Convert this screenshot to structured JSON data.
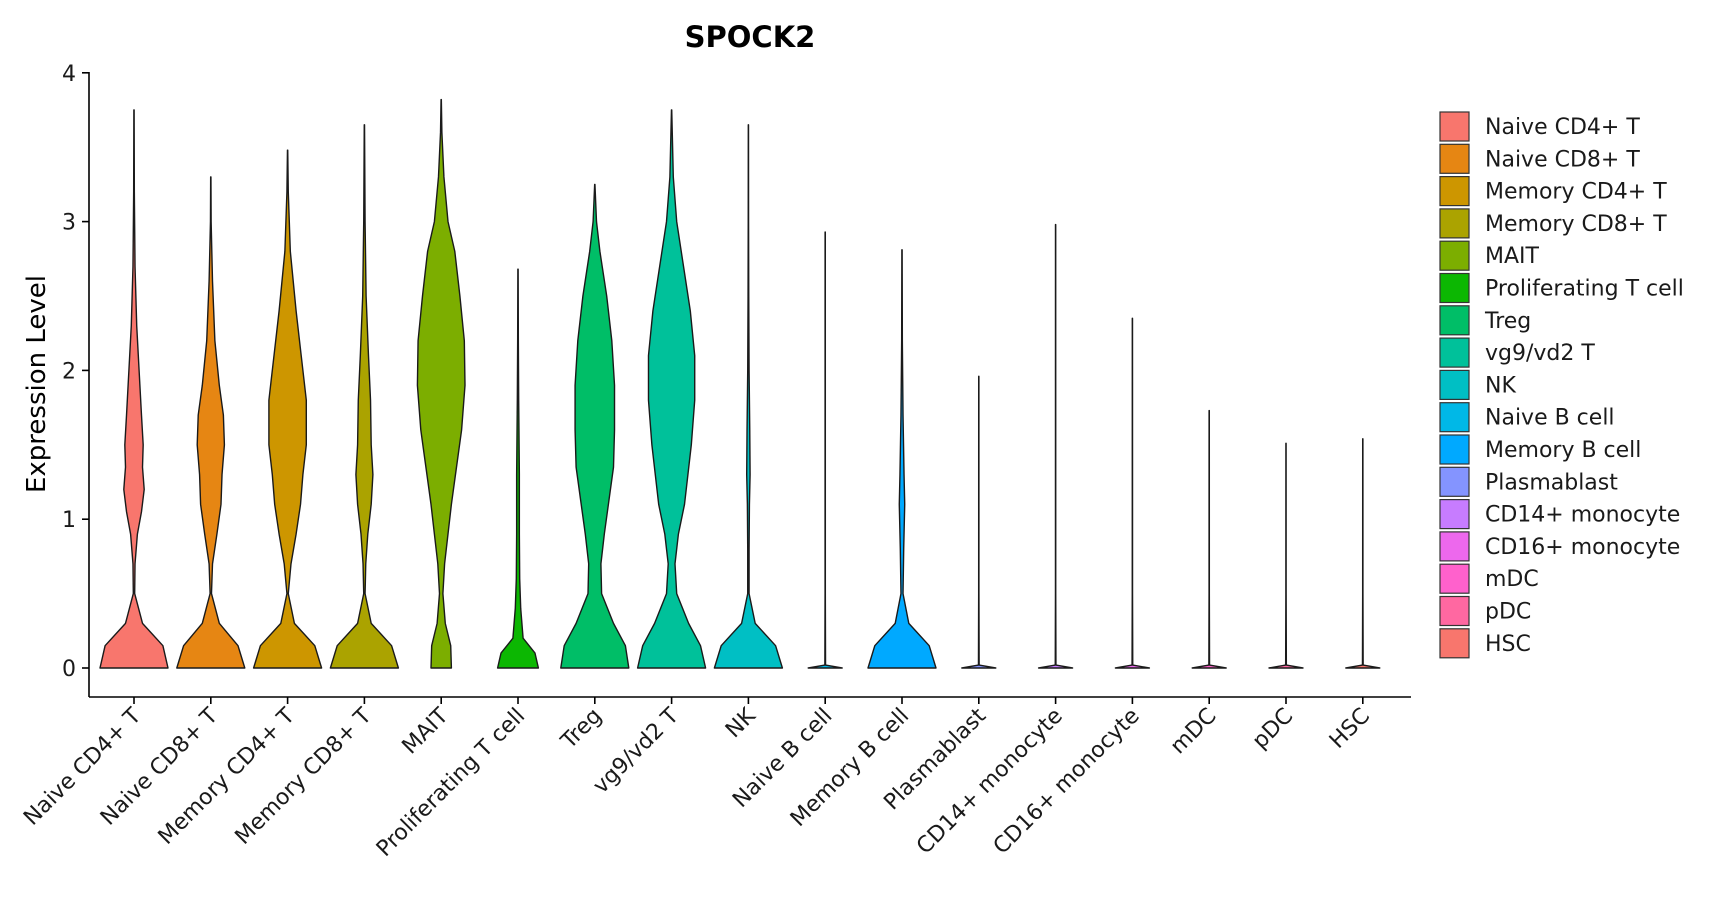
{
  "chart_data": {
    "type": "violin",
    "title": "SPOCK2",
    "xlabel": "",
    "ylabel": "Expression Level",
    "ylim": [
      -0.18,
      4.0
    ],
    "yticks": [
      "0",
      "1",
      "2",
      "3",
      "4"
    ],
    "grid": false,
    "legend_position": "right",
    "categories": [
      "Naive CD4+ T",
      "Naive CD8+ T",
      "Memory CD4+ T",
      "Memory CD8+ T",
      "MAIT",
      "Proliferating T cell",
      "Treg",
      "vg9/vd2 T",
      "NK",
      "Naive B cell",
      "Memory B cell",
      "Plasmablast",
      "CD14+ monocyte",
      "CD16+ monocyte",
      "mDC",
      "pDC",
      "HSC"
    ],
    "colors": [
      "#F8766D",
      "#E68613",
      "#CD9600",
      "#ABA300",
      "#7CAE00",
      "#0CB702",
      "#00BE67",
      "#00C19A",
      "#00BFC4",
      "#00B8E7",
      "#00A9FF",
      "#8494FF",
      "#C77CFF",
      "#ED68ED",
      "#FF61CC",
      "#FF68A1",
      "#F8766D"
    ],
    "series": [
      {
        "max": 3.75,
        "profile": [
          [
            0,
            1
          ],
          [
            0.15,
            0.85
          ],
          [
            0.3,
            0.25
          ],
          [
            0.5,
            0.02
          ],
          [
            0.7,
            0.03
          ],
          [
            0.9,
            0.1
          ],
          [
            1.05,
            0.22
          ],
          [
            1.2,
            0.3
          ],
          [
            1.35,
            0.25
          ],
          [
            1.5,
            0.27
          ],
          [
            1.7,
            0.22
          ],
          [
            2.0,
            0.15
          ],
          [
            2.3,
            0.08
          ],
          [
            2.7,
            0.03
          ],
          [
            3.2,
            0.01
          ],
          [
            3.75,
            0.004
          ]
        ]
      },
      {
        "max": 3.3,
        "profile": [
          [
            0,
            1
          ],
          [
            0.15,
            0.8
          ],
          [
            0.3,
            0.25
          ],
          [
            0.5,
            0.02
          ],
          [
            0.7,
            0.05
          ],
          [
            0.9,
            0.18
          ],
          [
            1.1,
            0.3
          ],
          [
            1.3,
            0.33
          ],
          [
            1.5,
            0.4
          ],
          [
            1.7,
            0.37
          ],
          [
            1.9,
            0.25
          ],
          [
            2.2,
            0.12
          ],
          [
            2.6,
            0.05
          ],
          [
            3.0,
            0.01
          ],
          [
            3.3,
            0.004
          ]
        ]
      },
      {
        "max": 3.48,
        "profile": [
          [
            0,
            1
          ],
          [
            0.15,
            0.8
          ],
          [
            0.3,
            0.2
          ],
          [
            0.5,
            0.02
          ],
          [
            0.7,
            0.1
          ],
          [
            0.9,
            0.25
          ],
          [
            1.1,
            0.38
          ],
          [
            1.3,
            0.45
          ],
          [
            1.5,
            0.55
          ],
          [
            1.8,
            0.55
          ],
          [
            2.1,
            0.4
          ],
          [
            2.4,
            0.25
          ],
          [
            2.8,
            0.08
          ],
          [
            3.2,
            0.02
          ],
          [
            3.48,
            0.004
          ]
        ]
      },
      {
        "max": 3.65,
        "profile": [
          [
            0,
            1
          ],
          [
            0.15,
            0.8
          ],
          [
            0.3,
            0.2
          ],
          [
            0.5,
            0.02
          ],
          [
            0.7,
            0.04
          ],
          [
            0.9,
            0.1
          ],
          [
            1.1,
            0.2
          ],
          [
            1.3,
            0.25
          ],
          [
            1.5,
            0.2
          ],
          [
            1.8,
            0.18
          ],
          [
            2.1,
            0.12
          ],
          [
            2.5,
            0.05
          ],
          [
            3.0,
            0.02
          ],
          [
            3.65,
            0.004
          ]
        ]
      },
      {
        "max": 3.82,
        "profile": [
          [
            0,
            0.3
          ],
          [
            0.15,
            0.28
          ],
          [
            0.3,
            0.12
          ],
          [
            0.5,
            0.05
          ],
          [
            0.7,
            0.1
          ],
          [
            0.9,
            0.2
          ],
          [
            1.1,
            0.3
          ],
          [
            1.35,
            0.45
          ],
          [
            1.6,
            0.6
          ],
          [
            1.9,
            0.7
          ],
          [
            2.2,
            0.68
          ],
          [
            2.5,
            0.55
          ],
          [
            2.8,
            0.4
          ],
          [
            3.0,
            0.2
          ],
          [
            3.3,
            0.08
          ],
          [
            3.6,
            0.02
          ],
          [
            3.82,
            0.004
          ]
        ]
      },
      {
        "max": 2.68,
        "profile": [
          [
            0,
            0.6
          ],
          [
            0.1,
            0.5
          ],
          [
            0.2,
            0.15
          ],
          [
            0.4,
            0.08
          ],
          [
            0.6,
            0.05
          ],
          [
            0.9,
            0.04
          ],
          [
            1.3,
            0.04
          ],
          [
            1.8,
            0.02
          ],
          [
            2.2,
            0.01
          ],
          [
            2.68,
            0.004
          ]
        ]
      },
      {
        "max": 3.25,
        "profile": [
          [
            0,
            1
          ],
          [
            0.15,
            0.9
          ],
          [
            0.3,
            0.55
          ],
          [
            0.5,
            0.2
          ],
          [
            0.7,
            0.18
          ],
          [
            0.9,
            0.28
          ],
          [
            1.1,
            0.4
          ],
          [
            1.35,
            0.55
          ],
          [
            1.6,
            0.58
          ],
          [
            1.9,
            0.58
          ],
          [
            2.2,
            0.5
          ],
          [
            2.5,
            0.35
          ],
          [
            2.8,
            0.15
          ],
          [
            3.0,
            0.05
          ],
          [
            3.25,
            0.004
          ]
        ]
      },
      {
        "max": 3.75,
        "profile": [
          [
            0,
            1
          ],
          [
            0.15,
            0.85
          ],
          [
            0.3,
            0.5
          ],
          [
            0.5,
            0.15
          ],
          [
            0.7,
            0.1
          ],
          [
            0.9,
            0.2
          ],
          [
            1.1,
            0.38
          ],
          [
            1.3,
            0.48
          ],
          [
            1.5,
            0.58
          ],
          [
            1.8,
            0.68
          ],
          [
            2.1,
            0.68
          ],
          [
            2.4,
            0.55
          ],
          [
            2.7,
            0.35
          ],
          [
            3.0,
            0.15
          ],
          [
            3.3,
            0.05
          ],
          [
            3.75,
            0.004
          ]
        ]
      },
      {
        "max": 3.65,
        "profile": [
          [
            0,
            1
          ],
          [
            0.15,
            0.8
          ],
          [
            0.3,
            0.2
          ],
          [
            0.5,
            0.02
          ],
          [
            0.8,
            0.02
          ],
          [
            1.1,
            0.03
          ],
          [
            1.3,
            0.05
          ],
          [
            1.6,
            0.04
          ],
          [
            2.0,
            0.02
          ],
          [
            2.5,
            0.01
          ],
          [
            3.0,
            0.005
          ],
          [
            3.65,
            0.003
          ]
        ]
      },
      {
        "max": 2.93,
        "profile": [
          [
            0,
            0.5
          ],
          [
            0.02,
            0.01
          ],
          [
            0.5,
            0.004
          ],
          [
            2.93,
            0.003
          ]
        ]
      },
      {
        "max": 2.81,
        "profile": [
          [
            0,
            1
          ],
          [
            0.15,
            0.8
          ],
          [
            0.3,
            0.2
          ],
          [
            0.5,
            0.03
          ],
          [
            0.8,
            0.05
          ],
          [
            1.1,
            0.08
          ],
          [
            1.3,
            0.06
          ],
          [
            1.7,
            0.03
          ],
          [
            2.2,
            0.01
          ],
          [
            2.81,
            0.004
          ]
        ]
      },
      {
        "max": 1.96,
        "profile": [
          [
            0,
            0.5
          ],
          [
            0.02,
            0.01
          ],
          [
            0.5,
            0.004
          ],
          [
            1.96,
            0.003
          ]
        ]
      },
      {
        "max": 2.98,
        "profile": [
          [
            0,
            0.5
          ],
          [
            0.02,
            0.01
          ],
          [
            0.5,
            0.004
          ],
          [
            2.98,
            0.003
          ]
        ]
      },
      {
        "max": 2.35,
        "profile": [
          [
            0,
            0.5
          ],
          [
            0.02,
            0.01
          ],
          [
            0.5,
            0.004
          ],
          [
            2.35,
            0.003
          ]
        ]
      },
      {
        "max": 1.73,
        "profile": [
          [
            0,
            0.5
          ],
          [
            0.02,
            0.01
          ],
          [
            0.5,
            0.004
          ],
          [
            1.73,
            0.003
          ]
        ]
      },
      {
        "max": 1.51,
        "profile": [
          [
            0,
            0.5
          ],
          [
            0.02,
            0.01
          ],
          [
            0.5,
            0.004
          ],
          [
            1.51,
            0.003
          ]
        ]
      },
      {
        "max": 1.54,
        "profile": [
          [
            0,
            0.5
          ],
          [
            0.02,
            0.01
          ],
          [
            0.5,
            0.004
          ],
          [
            1.54,
            0.003
          ]
        ]
      }
    ],
    "legend": [
      "Naive CD4+ T",
      "Naive CD8+ T",
      "Memory CD4+ T",
      "Memory CD8+ T",
      "MAIT",
      "Proliferating T cell",
      "Treg",
      "vg9/vd2 T",
      "NK",
      "Naive B cell",
      "Memory B cell",
      "Plasmablast",
      "CD14+ monocyte",
      "CD16+ monocyte",
      "mDC",
      "pDC",
      "HSC"
    ]
  }
}
